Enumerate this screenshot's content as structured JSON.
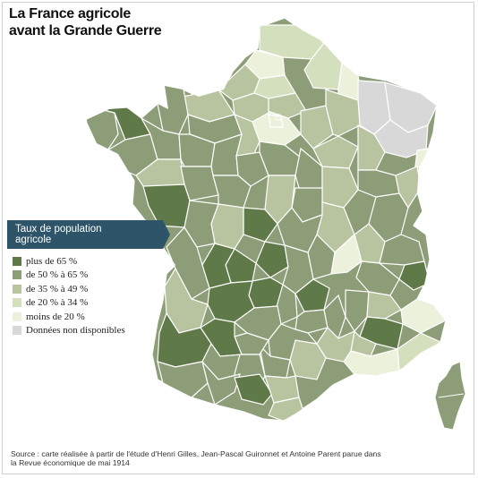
{
  "title": {
    "line1": "La France agricole",
    "line2": "avant la Grande Guerre"
  },
  "legend": {
    "heading_line1": "Taux de population",
    "heading_line2": "agricole",
    "items": [
      {
        "label": "plus de 65 %",
        "color": "#5f7a48"
      },
      {
        "label": "de 50 % à 65 %",
        "color": "#8c9d78"
      },
      {
        "label": "de 35 % à 49 %",
        "color": "#b7c49f"
      },
      {
        "label": "de 20 % à 34 %",
        "color": "#d4dfbd"
      },
      {
        "label": "moins de 20 %",
        "color": "#ecf1dc"
      },
      {
        "label": "Données non disponibles",
        "color": "#d8d8d8"
      }
    ],
    "banner_color": "#2d5468"
  },
  "source": {
    "line1": "Source : carte réalisée à partir de l'étude d'Henri Gilles, Jean-Pascal Guironnet et Antoine Parent parue dans",
    "line2": "la Revue économique de mai 1914"
  }
}
